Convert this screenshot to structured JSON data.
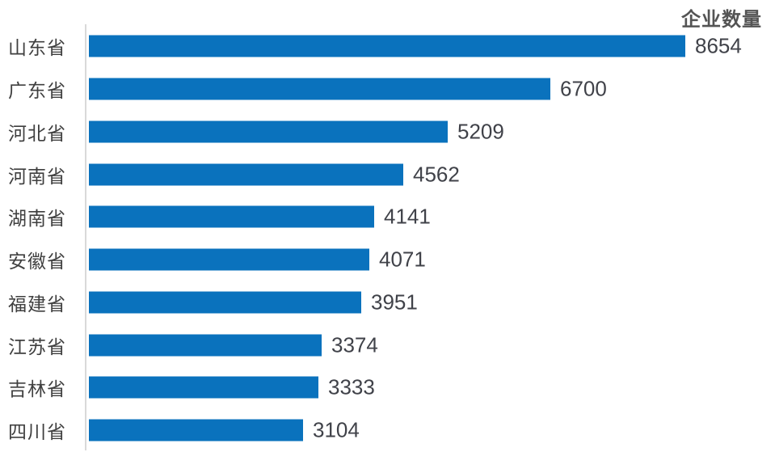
{
  "chart_data": {
    "type": "bar",
    "orientation": "horizontal",
    "title": "企业数量",
    "categories": [
      "山东省",
      "广东省",
      "河北省",
      "河南省",
      "湖南省",
      "安徽省",
      "福建省",
      "江苏省",
      "吉林省",
      "四川省"
    ],
    "values": [
      8654,
      6700,
      5209,
      4562,
      4141,
      4071,
      3951,
      3374,
      3333,
      3104
    ],
    "xlim": [
      0,
      8654
    ],
    "grid": false,
    "data_labels": true,
    "title_position": "top-right",
    "bar_color": "#0a72bd"
  },
  "colors": {
    "bar": "#0a72bd",
    "category_text": "#3f3f3f",
    "value_text": "#404249",
    "title_text": "#545454",
    "axis_line": "#d9d9d9",
    "background": "#ffffff"
  }
}
